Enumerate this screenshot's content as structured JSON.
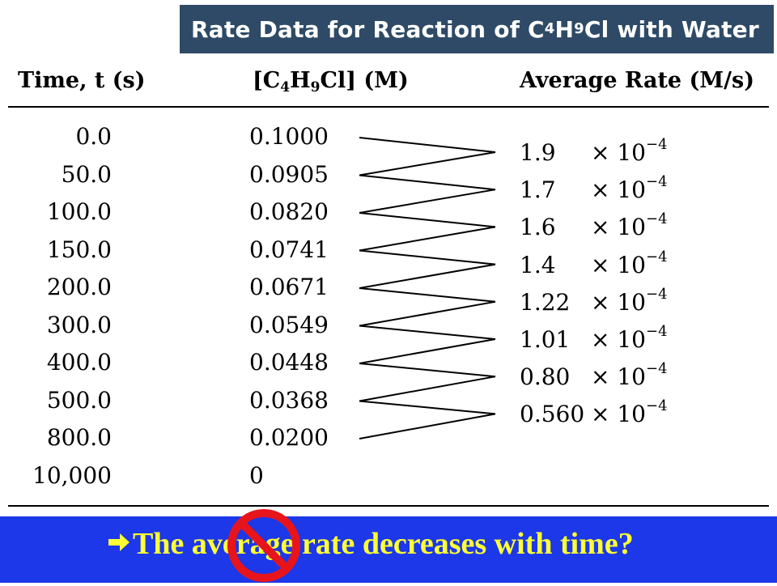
{
  "title": {
    "prefix": "Rate Data for Reaction of C",
    "sub1": "4",
    "mid": "H",
    "sub2": "9",
    "suffix": "Cl with Water"
  },
  "headers": {
    "time": "Time, t (s)",
    "conc_prefix": "[C",
    "conc_sub1": "4",
    "conc_mid": "H",
    "conc_sub2": "9",
    "conc_suffix": "Cl] (M)",
    "rate": "Average Rate (M/s)"
  },
  "times": [
    "0.0",
    "50.0",
    "100.0",
    "150.0",
    "200.0",
    "300.0",
    "400.0",
    "500.0",
    "800.0",
    "10,000"
  ],
  "concentrations": [
    "0.1000",
    "0.0905",
    "0.0820",
    "0.0741",
    "0.0671",
    "0.0549",
    "0.0448",
    "0.0368",
    "0.0200",
    "0"
  ],
  "rates": [
    "1.9",
    "1.7",
    "1.6",
    "1.4",
    "1.22",
    "1.01",
    "0.80",
    "0.560"
  ],
  "rate_factor": "× 10",
  "rate_exponent": "−4",
  "bottom": {
    "arrow_icon": "right-arrow-icon",
    "text": "The average rate decreases with time?",
    "overlay_icon": "prohibition-sign-icon"
  },
  "colors": {
    "title_bg": "#2e4a66",
    "bottom_bg": "#1c38e8",
    "bottom_text": "#ffff33",
    "no_sign": "#e8141c"
  }
}
